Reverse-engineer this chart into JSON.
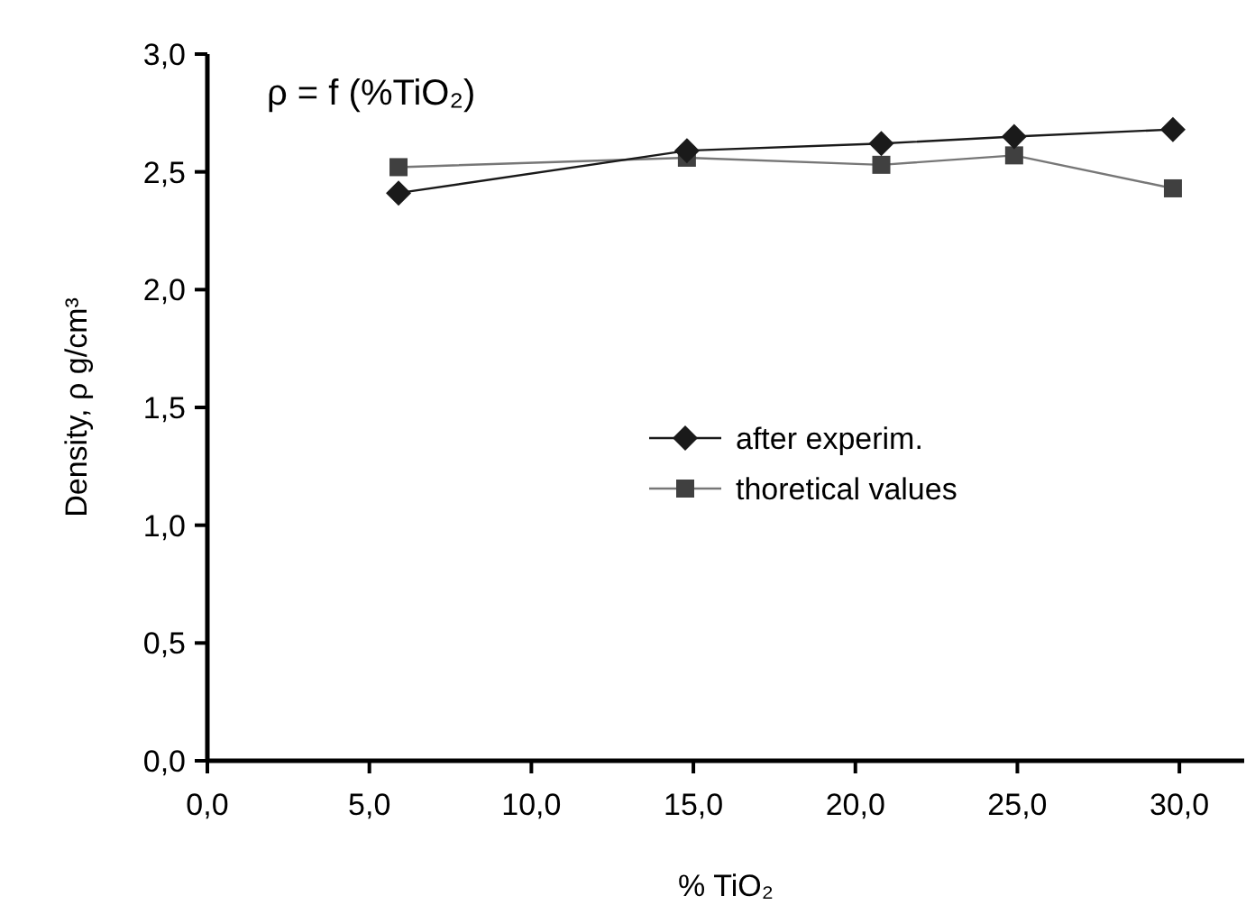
{
  "chart_data": {
    "type": "line",
    "title": "ρ = f (%TiO₂)",
    "xlabel": "% TiO₂",
    "ylabel": "Density, ρ g/cm³",
    "xlim": [
      0,
      32
    ],
    "xticks": [
      {
        "value": 0,
        "label": "0,0"
      },
      {
        "value": 5,
        "label": "5,0"
      },
      {
        "value": 10,
        "label": "10,0"
      },
      {
        "value": 15,
        "label": "15,0"
      },
      {
        "value": 20,
        "label": "20,0"
      },
      {
        "value": 25,
        "label": "25,0"
      },
      {
        "value": 30,
        "label": "30,0"
      }
    ],
    "ylim": [
      0,
      3
    ],
    "yticks": [
      {
        "value": 0,
        "label": "0,0"
      },
      {
        "value": 0.5,
        "label": "0,5"
      },
      {
        "value": 1,
        "label": "1,0"
      },
      {
        "value": 1.5,
        "label": "1,5"
      },
      {
        "value": 2,
        "label": "2,0"
      },
      {
        "value": 2.5,
        "label": "2,5"
      },
      {
        "value": 3,
        "label": "3,0"
      }
    ],
    "x": [
      5.9,
      14.8,
      20.8,
      24.9,
      29.8
    ],
    "series": [
      {
        "name": "after experim.",
        "color": "#1a1a1a",
        "marker": "diamond",
        "values": [
          2.41,
          2.59,
          2.62,
          2.65,
          2.68
        ]
      },
      {
        "name": "thoretical values",
        "color": "#404040",
        "marker": "square",
        "values": [
          2.52,
          2.56,
          2.53,
          2.57,
          2.43
        ]
      }
    ],
    "legend": "center",
    "grid": false,
    "line_style": "solid"
  }
}
